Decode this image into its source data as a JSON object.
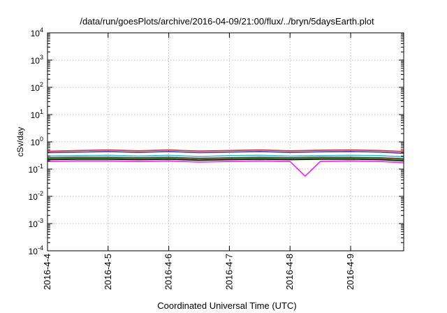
{
  "chart_data": {
    "type": "line",
    "title": "/data/run/goesPlots/archive/2016-04-09/21:00/flux/../bryn/5daysEarth.plot",
    "xlabel": "Coordinated Universal Time (UTC)",
    "ylabel": "cSv/day",
    "yscale": "log",
    "ylim": [
      0.0001,
      10000
    ],
    "xlim": [
      "2016-04-04T00:00",
      "2016-04-09T21:00"
    ],
    "grid": true,
    "legend": "none",
    "y_ticks": [
      {
        "value": 0.0001,
        "base": "10",
        "exp": "-4"
      },
      {
        "value": 0.001,
        "base": "10",
        "exp": "-3"
      },
      {
        "value": 0.01,
        "base": "10",
        "exp": "-2"
      },
      {
        "value": 0.1,
        "base": "10",
        "exp": "-1"
      },
      {
        "value": 1,
        "base": "10",
        "exp": "0"
      },
      {
        "value": 10,
        "base": "10",
        "exp": "1"
      },
      {
        "value": 100,
        "base": "10",
        "exp": "2"
      },
      {
        "value": 1000,
        "base": "10",
        "exp": "3"
      },
      {
        "value": 10000,
        "base": "10",
        "exp": "4"
      }
    ],
    "x_ticks": [
      {
        "value": "2016-04-04T00:00",
        "label": "2016-4-4"
      },
      {
        "value": "2016-04-05T00:00",
        "label": "2016-4-5"
      },
      {
        "value": "2016-04-06T00:00",
        "label": "2016-4-6"
      },
      {
        "value": "2016-04-07T00:00",
        "label": "2016-4-7"
      },
      {
        "value": "2016-04-08T00:00",
        "label": "2016-4-8"
      },
      {
        "value": "2016-04-09T00:00",
        "label": "2016-4-9"
      }
    ],
    "series": [
      {
        "color": "#e8232a",
        "x": [
          "2016-04-04T00:00",
          "2016-04-04T12:00",
          "2016-04-05T00:00",
          "2016-04-05T12:00",
          "2016-04-06T00:00",
          "2016-04-06T12:00",
          "2016-04-07T00:00",
          "2016-04-07T12:00",
          "2016-04-08T00:00",
          "2016-04-08T12:00",
          "2016-04-09T00:00",
          "2016-04-09T12:00",
          "2016-04-09T21:00"
        ],
        "values": [
          0.45,
          0.48,
          0.5,
          0.47,
          0.5,
          0.46,
          0.48,
          0.5,
          0.47,
          0.49,
          0.5,
          0.48,
          0.44
        ]
      },
      {
        "color": "#2a3dd8",
        "x": [
          "2016-04-04T00:00",
          "2016-04-04T12:00",
          "2016-04-05T00:00",
          "2016-04-05T12:00",
          "2016-04-06T00:00",
          "2016-04-06T12:00",
          "2016-04-07T00:00",
          "2016-04-07T12:00",
          "2016-04-08T00:00",
          "2016-04-08T12:00",
          "2016-04-09T00:00",
          "2016-04-09T12:00",
          "2016-04-09T21:00"
        ],
        "values": [
          0.4,
          0.42,
          0.44,
          0.41,
          0.44,
          0.4,
          0.42,
          0.44,
          0.41,
          0.43,
          0.44,
          0.42,
          0.38
        ]
      },
      {
        "color": "#28c4d8",
        "x": [
          "2016-04-04T00:00",
          "2016-04-04T12:00",
          "2016-04-05T00:00",
          "2016-04-05T12:00",
          "2016-04-06T00:00",
          "2016-04-06T12:00",
          "2016-04-07T00:00",
          "2016-04-07T12:00",
          "2016-04-08T00:00",
          "2016-04-08T12:00",
          "2016-04-09T00:00",
          "2016-04-09T12:00",
          "2016-04-09T21:00"
        ],
        "values": [
          0.3,
          0.31,
          0.32,
          0.3,
          0.32,
          0.29,
          0.31,
          0.32,
          0.3,
          0.31,
          0.32,
          0.31,
          0.28
        ]
      },
      {
        "color": "#7a2a1e",
        "x": [
          "2016-04-04T00:00",
          "2016-04-04T12:00",
          "2016-04-05T00:00",
          "2016-04-05T12:00",
          "2016-04-06T00:00",
          "2016-04-06T12:00",
          "2016-04-07T00:00",
          "2016-04-07T12:00",
          "2016-04-08T00:00",
          "2016-04-08T12:00",
          "2016-04-09T00:00",
          "2016-04-09T12:00",
          "2016-04-09T21:00"
        ],
        "values": [
          0.26,
          0.27,
          0.27,
          0.26,
          0.27,
          0.25,
          0.26,
          0.27,
          0.26,
          0.27,
          0.27,
          0.26,
          0.24
        ]
      },
      {
        "color": "#2f9a3a",
        "x": [
          "2016-04-04T00:00",
          "2016-04-04T12:00",
          "2016-04-05T00:00",
          "2016-04-05T12:00",
          "2016-04-06T00:00",
          "2016-04-06T12:00",
          "2016-04-07T00:00",
          "2016-04-07T12:00",
          "2016-04-08T00:00",
          "2016-04-08T12:00",
          "2016-04-09T00:00",
          "2016-04-09T12:00",
          "2016-04-09T21:00"
        ],
        "values": [
          0.24,
          0.25,
          0.25,
          0.24,
          0.25,
          0.23,
          0.24,
          0.25,
          0.24,
          0.25,
          0.25,
          0.24,
          0.22
        ]
      },
      {
        "color": "#111111",
        "x": [
          "2016-04-04T00:00",
          "2016-04-04T12:00",
          "2016-04-05T00:00",
          "2016-04-05T12:00",
          "2016-04-06T00:00",
          "2016-04-06T12:00",
          "2016-04-07T00:00",
          "2016-04-07T12:00",
          "2016-04-08T00:00",
          "2016-04-08T12:00",
          "2016-04-09T00:00",
          "2016-04-09T12:00",
          "2016-04-09T21:00"
        ],
        "values": [
          0.22,
          0.23,
          0.23,
          0.22,
          0.23,
          0.21,
          0.22,
          0.23,
          0.22,
          0.23,
          0.23,
          0.22,
          0.2
        ]
      },
      {
        "color": "#ff1be0",
        "x": [
          "2016-04-04T00:00",
          "2016-04-04T12:00",
          "2016-04-05T00:00",
          "2016-04-05T12:00",
          "2016-04-06T00:00",
          "2016-04-06T12:00",
          "2016-04-07T00:00",
          "2016-04-07T12:00",
          "2016-04-08T00:00",
          "2016-04-08T06:00",
          "2016-04-08T12:00",
          "2016-04-09T00:00",
          "2016-04-09T12:00",
          "2016-04-09T21:00"
        ],
        "values": [
          0.19,
          0.2,
          0.2,
          0.19,
          0.2,
          0.18,
          0.19,
          0.2,
          0.19,
          0.055,
          0.19,
          0.2,
          0.19,
          0.17
        ]
      }
    ]
  }
}
